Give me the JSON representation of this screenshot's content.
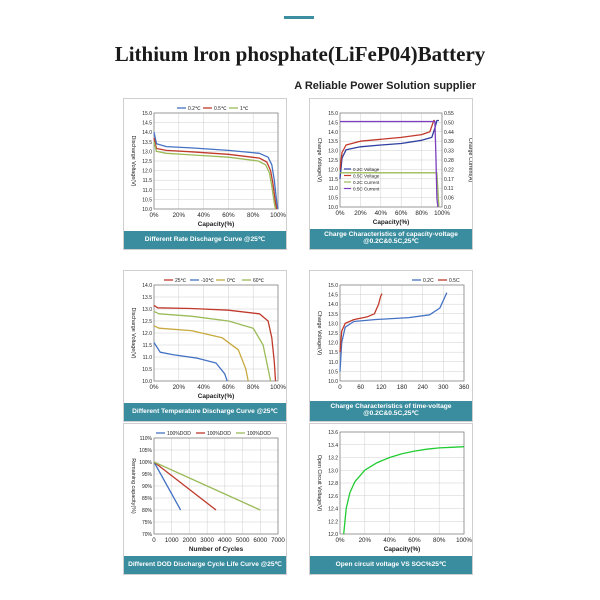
{
  "title": "Lithium lron phosphate(LiFeP04)Battery",
  "subtitle": "A Reliable Power Solution supplier",
  "colors": {
    "accent": "#3a8d9e",
    "blue": "#4472c4",
    "red": "#c0392b",
    "green": "#9bbb59",
    "bright_green": "#22cc33",
    "purple": "#7b3fbf",
    "navy": "#2f3fa0"
  },
  "chart_data": [
    {
      "type": "line",
      "caption": "Different Rate Discharge Curve @25℃",
      "xlabel": "Capacity(%)",
      "ylabel": "Discharge Voltage(V)",
      "xlim": [
        0,
        100
      ],
      "ylim": [
        10.0,
        15.0
      ],
      "xticks": [
        "0%",
        "20%",
        "40%",
        "60%",
        "80%",
        "100%"
      ],
      "yticks": [
        "10.0",
        "10.5",
        "11.0",
        "11.5",
        "12.0",
        "12.5",
        "13.0",
        "13.5",
        "14.0",
        "14.5",
        "15.0"
      ],
      "grid": true,
      "legend": "top",
      "series": [
        {
          "name": "0.2℃",
          "color": "#4472c4",
          "points": [
            [
              0,
              14.0
            ],
            [
              2,
              13.4
            ],
            [
              10,
              13.25
            ],
            [
              30,
              13.18
            ],
            [
              60,
              13.05
            ],
            [
              85,
              12.9
            ],
            [
              92,
              12.7
            ],
            [
              95,
              12.3
            ],
            [
              97,
              11.5
            ],
            [
              99,
              10.3
            ],
            [
              100,
              10.0
            ]
          ]
        },
        {
          "name": "0.5℃",
          "color": "#c0392b",
          "points": [
            [
              0,
              13.7
            ],
            [
              2,
              13.15
            ],
            [
              10,
              13.05
            ],
            [
              30,
              12.98
            ],
            [
              60,
              12.85
            ],
            [
              85,
              12.65
            ],
            [
              91,
              12.45
            ],
            [
              94,
              12.0
            ],
            [
              96,
              11.3
            ],
            [
              98,
              10.3
            ],
            [
              99,
              10.0
            ]
          ]
        },
        {
          "name": "1℃",
          "color": "#9bbb59",
          "points": [
            [
              0,
              13.5
            ],
            [
              2,
              13.0
            ],
            [
              10,
              12.9
            ],
            [
              30,
              12.82
            ],
            [
              60,
              12.7
            ],
            [
              84,
              12.5
            ],
            [
              90,
              12.3
            ],
            [
              93,
              11.9
            ],
            [
              95,
              11.2
            ],
            [
              97,
              10.3
            ],
            [
              98,
              10.0
            ]
          ]
        }
      ]
    },
    {
      "type": "line",
      "caption": "Charge Characteristics of capacity-voltage @0.2C&0.5C,25℃",
      "xlabel": "Capacity(%)",
      "ylabel": "Charge Voltage(V)",
      "y2label": "Charge Current(A)",
      "xlim": [
        0,
        100
      ],
      "ylim": [
        10.0,
        15.0
      ],
      "y2lim": [
        0.0,
        0.55
      ],
      "xticks": [
        "0%",
        "20%",
        "40%",
        "60%",
        "80%",
        "100%"
      ],
      "yticks": [
        "10.0",
        "10.5",
        "11.0",
        "11.5",
        "12.0",
        "12.5",
        "13.0",
        "13.5",
        "14.0",
        "14.5",
        "15.0"
      ],
      "y2ticks": [
        "0.0",
        "0.06",
        "0.11",
        "0.17",
        "0.22",
        "0.28",
        "0.33",
        "0.39",
        "0.44",
        "0.50",
        "0.55"
      ],
      "grid": true,
      "legend": "bottom-left",
      "series": [
        {
          "name": "0.2C Voltage",
          "color": "#2f3fa0",
          "axis": "left",
          "points": [
            [
              0,
              11.5
            ],
            [
              2,
              12.6
            ],
            [
              6,
              13.05
            ],
            [
              20,
              13.2
            ],
            [
              40,
              13.3
            ],
            [
              60,
              13.38
            ],
            [
              80,
              13.55
            ],
            [
              90,
              13.7
            ],
            [
              93,
              14.2
            ],
            [
              95,
              14.6
            ],
            [
              97,
              14.6
            ]
          ]
        },
        {
          "name": "0.5C Voltage",
          "color": "#c0392b",
          "axis": "left",
          "points": [
            [
              0,
              12.0
            ],
            [
              2,
              12.9
            ],
            [
              6,
              13.3
            ],
            [
              20,
              13.5
            ],
            [
              40,
              13.6
            ],
            [
              60,
              13.7
            ],
            [
              80,
              13.85
            ],
            [
              88,
              14.0
            ],
            [
              90,
              14.3
            ],
            [
              92,
              14.6
            ],
            [
              93,
              14.6
            ]
          ]
        },
        {
          "name": "0.2C Current",
          "color": "#9bbb59",
          "axis": "right",
          "points": [
            [
              0,
              0.2
            ],
            [
              95,
              0.2
            ],
            [
              96,
              0.1
            ],
            [
              97,
              0.0
            ]
          ]
        },
        {
          "name": "0.5C Current",
          "color": "#7b3fbf",
          "axis": "right",
          "points": [
            [
              0,
              0.5
            ],
            [
              93,
              0.5
            ],
            [
              94,
              0.3
            ],
            [
              95,
              0.05
            ],
            [
              96,
              0.0
            ]
          ]
        }
      ]
    },
    {
      "type": "line",
      "caption": "Different Temperature Discharge Curve @25℃",
      "xlabel": "Capacity(%)",
      "ylabel": "Discharge Voltage(V)",
      "xlim": [
        0,
        100
      ],
      "ylim": [
        10.0,
        14.0
      ],
      "xticks": [
        "0%",
        "20%",
        "40%",
        "60%",
        "80%",
        "100%"
      ],
      "yticks": [
        "10.0",
        "10.5",
        "11.0",
        "11.5",
        "12.0",
        "12.5",
        "13.0",
        "13.5",
        "14.0"
      ],
      "grid": true,
      "legend": "top",
      "series": [
        {
          "name": "25℃",
          "color": "#c0392b",
          "points": [
            [
              0,
              13.15
            ],
            [
              3,
              13.05
            ],
            [
              30,
              13.02
            ],
            [
              60,
              12.95
            ],
            [
              85,
              12.8
            ],
            [
              92,
              12.5
            ],
            [
              95,
              11.8
            ],
            [
              97,
              10.8
            ],
            [
              98,
              10.0
            ]
          ]
        },
        {
          "name": "-10℃",
          "color": "#4472c4",
          "points": [
            [
              0,
              11.6
            ],
            [
              5,
              11.2
            ],
            [
              15,
              11.1
            ],
            [
              35,
              10.95
            ],
            [
              50,
              10.75
            ],
            [
              57,
              10.3
            ],
            [
              59,
              10.0
            ]
          ]
        },
        {
          "name": "0℃",
          "color": "#c7a93d",
          "points": [
            [
              0,
              12.3
            ],
            [
              4,
              12.2
            ],
            [
              30,
              12.1
            ],
            [
              55,
              11.8
            ],
            [
              68,
              11.3
            ],
            [
              74,
              10.5
            ],
            [
              76,
              10.0
            ]
          ]
        },
        {
          "name": "60℃",
          "color": "#9bbb59",
          "points": [
            [
              0,
              12.9
            ],
            [
              4,
              12.8
            ],
            [
              30,
              12.7
            ],
            [
              60,
              12.5
            ],
            [
              80,
              12.2
            ],
            [
              88,
              11.5
            ],
            [
              92,
              10.5
            ],
            [
              94,
              10.0
            ]
          ]
        }
      ]
    },
    {
      "type": "line",
      "caption": "Charge Characteristics of time-voltage @0.2C&0.5C,25℃",
      "xlabel": "",
      "ylabel": "Charge Voltage(V)",
      "xlim": [
        0,
        360
      ],
      "ylim": [
        10.0,
        15.0
      ],
      "xticks": [
        "0",
        "60",
        "120",
        "180",
        "240",
        "300",
        "360"
      ],
      "yticks": [
        "10.0",
        "10.5",
        "11.0",
        "11.5",
        "12.0",
        "12.5",
        "13.0",
        "13.5",
        "14.0",
        "14.5",
        "15.0"
      ],
      "grid": true,
      "legend": "top-right",
      "series": [
        {
          "name": "0.2C",
          "color": "#4472c4",
          "points": [
            [
              0,
              10.5
            ],
            [
              5,
              12.0
            ],
            [
              15,
              12.8
            ],
            [
              40,
              13.1
            ],
            [
              100,
              13.2
            ],
            [
              200,
              13.3
            ],
            [
              260,
              13.45
            ],
            [
              290,
              13.8
            ],
            [
              305,
              14.4
            ],
            [
              310,
              14.6
            ]
          ]
        },
        {
          "name": "0.5C",
          "color": "#c0392b",
          "points": [
            [
              0,
              11.5
            ],
            [
              5,
              12.6
            ],
            [
              15,
              13.0
            ],
            [
              40,
              13.2
            ],
            [
              80,
              13.35
            ],
            [
              100,
              13.5
            ],
            [
              112,
              14.0
            ],
            [
              118,
              14.4
            ],
            [
              122,
              14.55
            ]
          ]
        }
      ]
    },
    {
      "type": "line",
      "caption": "Different DOD Discharge Cycle Life Curve @25℃",
      "xlabel": "Number of Cycles",
      "ylabel": "Remaining capacity(%)",
      "xlim": [
        0,
        7000
      ],
      "ylim": [
        70,
        110
      ],
      "xticks": [
        "0",
        "1000",
        "2000",
        "3000",
        "4000",
        "5000",
        "6000",
        "7000"
      ],
      "yticks": [
        "70%",
        "75%",
        "80%",
        "85%",
        "90%",
        "95%",
        "100%",
        "105%",
        "110%"
      ],
      "grid": true,
      "legend": "top",
      "series": [
        {
          "name": "100%DOD",
          "color": "#4472c4",
          "points": [
            [
              0,
              100
            ],
            [
              1500,
              80
            ]
          ]
        },
        {
          "name": "100%DOD",
          "color": "#c0392b",
          "points": [
            [
              0,
              100
            ],
            [
              3500,
              80
            ]
          ]
        },
        {
          "name": "100%DOD",
          "color": "#9bbb59",
          "points": [
            [
              0,
              100
            ],
            [
              6000,
              80
            ]
          ]
        }
      ]
    },
    {
      "type": "line",
      "caption": "Open circuit voltage VS SOC%25℃",
      "xlabel": "Capacity(%)",
      "ylabel": "Open Circuit Voltage(V)",
      "xlim": [
        0,
        100
      ],
      "ylim": [
        12.0,
        13.6
      ],
      "xticks": [
        "0%",
        "20%",
        "40%",
        "60%",
        "80%",
        "100%"
      ],
      "yticks": [
        "12.0",
        "12.2",
        "12.4",
        "12.6",
        "12.8",
        "13.0",
        "13.2",
        "13.4",
        "13.6"
      ],
      "grid": true,
      "legend": "none",
      "series": [
        {
          "name": "",
          "color": "#22cc33",
          "points": [
            [
              3,
              12.0
            ],
            [
              5,
              12.4
            ],
            [
              8,
              12.65
            ],
            [
              12,
              12.82
            ],
            [
              20,
              13.0
            ],
            [
              30,
              13.12
            ],
            [
              40,
              13.2
            ],
            [
              50,
              13.26
            ],
            [
              60,
              13.3
            ],
            [
              70,
              13.33
            ],
            [
              80,
              13.35
            ],
            [
              90,
              13.36
            ],
            [
              100,
              13.37
            ]
          ]
        }
      ]
    }
  ]
}
